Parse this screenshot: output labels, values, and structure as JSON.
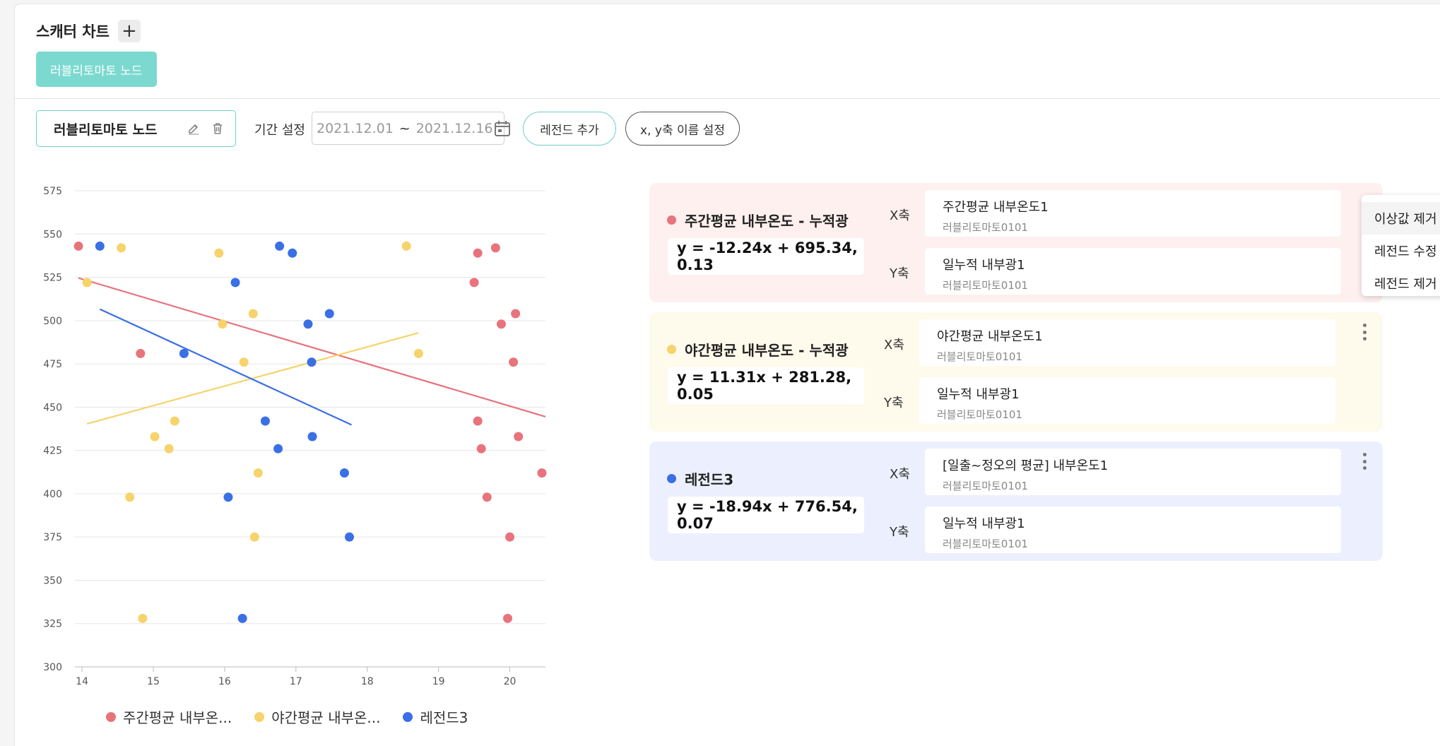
{
  "header": {
    "title": "스캐터 차트",
    "add_label": "+"
  },
  "node_tab": {
    "label": "러블리토마토 노드"
  },
  "toolbar": {
    "node_name": "러블리토마토 노드",
    "period_label": "기간 설정",
    "date_start": "2021.12.01",
    "date_sep": "~",
    "date_end": "2021.12.16",
    "add_legend_label": "레전드 추가",
    "axis_name_label": "x, y축 이름 설정"
  },
  "colors": {
    "red": "#e8737d",
    "yellow": "#f6d36b",
    "blue": "#3a6fe6",
    "teal": "#7cd9d0"
  },
  "chart_data": {
    "type": "scatter",
    "xlim": [
      13.9,
      20.5
    ],
    "ylim": [
      300,
      575
    ],
    "x_ticks": [
      14,
      15,
      16,
      17,
      18,
      19,
      20
    ],
    "y_ticks": [
      300,
      325,
      350,
      375,
      400,
      425,
      450,
      475,
      500,
      525,
      550,
      575
    ],
    "grid": true,
    "legend_position": "bottom",
    "series": [
      {
        "name": "주간평균 내부온...",
        "color": "#e8737d",
        "points": [
          [
            13.95,
            543
          ],
          [
            14.82,
            481
          ],
          [
            19.5,
            522
          ],
          [
            19.55,
            539
          ],
          [
            19.8,
            542
          ],
          [
            19.88,
            498
          ],
          [
            20.08,
            504
          ],
          [
            20.05,
            476
          ],
          [
            19.55,
            442
          ],
          [
            19.6,
            426
          ],
          [
            20.12,
            433
          ],
          [
            20.45,
            412
          ],
          [
            19.68,
            398
          ],
          [
            20.0,
            375
          ],
          [
            19.97,
            328
          ]
        ],
        "trend": {
          "x": [
            13.95,
            20.5
          ],
          "y": [
            524.6,
            444.5
          ]
        }
      },
      {
        "name": "야간평균 내부온...",
        "color": "#f6d36b",
        "points": [
          [
            14.07,
            522
          ],
          [
            14.55,
            542
          ],
          [
            15.92,
            539
          ],
          [
            15.97,
            498
          ],
          [
            16.4,
            504
          ],
          [
            16.27,
            476
          ],
          [
            15.3,
            442
          ],
          [
            15.02,
            433
          ],
          [
            15.22,
            426
          ],
          [
            16.47,
            412
          ],
          [
            14.67,
            398
          ],
          [
            16.42,
            375
          ],
          [
            14.85,
            328
          ],
          [
            18.55,
            543
          ],
          [
            18.72,
            481
          ]
        ],
        "trend": {
          "x": [
            14.07,
            18.72
          ],
          "y": [
            440.4,
            492.9
          ]
        }
      },
      {
        "name": "레전드3",
        "color": "#3a6fe6",
        "points": [
          [
            14.25,
            543
          ],
          [
            16.15,
            522
          ],
          [
            16.77,
            543
          ],
          [
            16.95,
            539
          ],
          [
            17.17,
            498
          ],
          [
            17.47,
            504
          ],
          [
            17.22,
            476
          ],
          [
            15.43,
            481
          ],
          [
            16.57,
            442
          ],
          [
            17.23,
            433
          ],
          [
            16.75,
            426
          ],
          [
            17.68,
            412
          ],
          [
            16.05,
            398
          ],
          [
            17.75,
            375
          ],
          [
            16.25,
            328
          ]
        ],
        "trend": {
          "x": [
            14.25,
            17.78
          ],
          "y": [
            506.6,
            439.8
          ]
        }
      }
    ]
  },
  "legend_cards": [
    {
      "name": "주간평균 내부온도 - 누적광",
      "color": "#e8737d",
      "equation": "y = -12.24x + 695.34, 0.13",
      "x_label": "X축",
      "x_main": "주간평균 내부온도1",
      "x_sub": "러블리토마토0101",
      "y_label": "Y축",
      "y_main": "일누적 내부광1",
      "y_sub": "러블리토마토0101"
    },
    {
      "name": "야간평균 내부온도 - 누적광",
      "color": "#f6d36b",
      "equation": "y = 11.31x + 281.28, 0.05",
      "x_label": "X축",
      "x_main": "야간평균 내부온도1",
      "x_sub": "러블리토마토0101",
      "y_label": "Y축",
      "y_main": "일누적 내부광1",
      "y_sub": "러블리토마토0101"
    },
    {
      "name": "레전드3",
      "color": "#3a6fe6",
      "equation": "y = -18.94x + 776.54, 0.07",
      "x_label": "X축",
      "x_main": "[일출~정오의 평균] 내부온도1",
      "x_sub": "러블리토마토0101",
      "y_label": "Y축",
      "y_main": "일누적 내부광1",
      "y_sub": "러블리토마토0101"
    }
  ],
  "context_menu": {
    "items": [
      "이상값 제거",
      "레전드 수정",
      "레전드 제거"
    ]
  }
}
